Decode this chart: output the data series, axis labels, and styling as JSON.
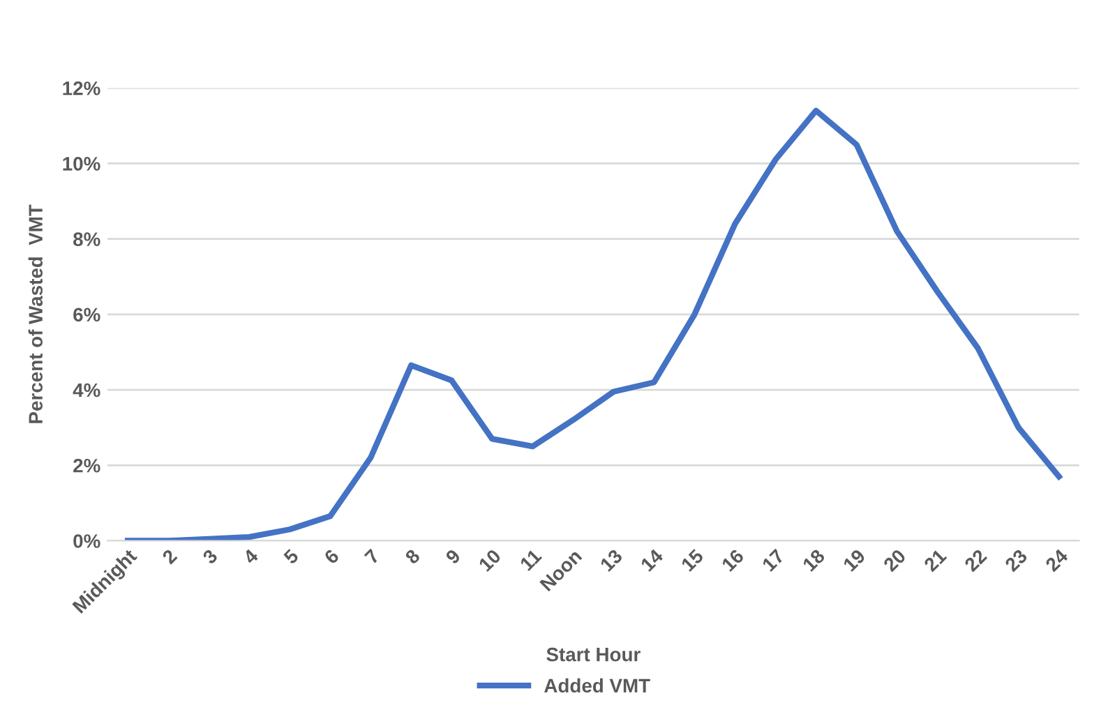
{
  "chart_data": {
    "type": "line",
    "xlabel": "Start Hour",
    "ylabel": "Percent of Wasted  VMT",
    "categories": [
      "Midnight",
      "2",
      "3",
      "4",
      "5",
      "6",
      "7",
      "8",
      "9",
      "10",
      "11",
      "Noon",
      "13",
      "14",
      "15",
      "16",
      "17",
      "18",
      "19",
      "20",
      "21",
      "22",
      "23",
      "24"
    ],
    "series": [
      {
        "name": "Added VMT",
        "color": "#4472c4",
        "values": [
          0,
          0,
          0.05,
          0.1,
          0.3,
          0.65,
          2.2,
          4.65,
          4.25,
          2.7,
          2.5,
          3.2,
          3.95,
          4.2,
          6.0,
          8.4,
          10.1,
          11.4,
          10.5,
          8.2,
          6.6,
          5.1,
          3.0,
          1.7
        ]
      }
    ],
    "ylim": [
      0,
      12
    ],
    "yticks": [
      {
        "value": 0,
        "label": "0%"
      },
      {
        "value": 2,
        "label": "2%"
      },
      {
        "value": 4,
        "label": "4%"
      },
      {
        "value": 6,
        "label": "6%"
      },
      {
        "value": 8,
        "label": "8%"
      },
      {
        "value": 10,
        "label": "10%"
      },
      {
        "value": 12,
        "label": "12%"
      }
    ],
    "grid": "y",
    "legend": "bottom",
    "marker": "none",
    "line_style": "solid"
  }
}
